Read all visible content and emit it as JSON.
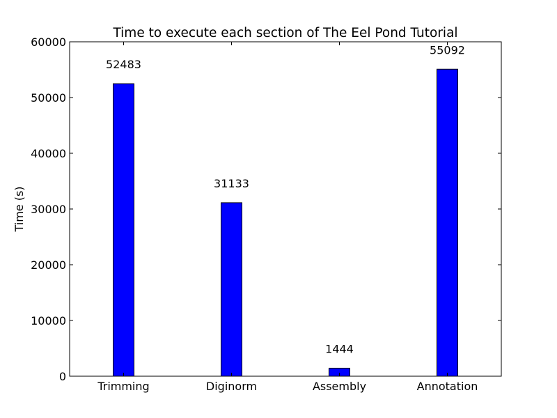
{
  "chart_data": {
    "type": "bar",
    "title": "Time to execute each section of The Eel Pond Tutorial",
    "xlabel": "",
    "ylabel": "Time (s)",
    "categories": [
      "Trimming",
      "Diginorm",
      "Assembly",
      "Annotation"
    ],
    "values": [
      52483,
      31133,
      1444,
      55092
    ],
    "data_labels": [
      "52483",
      "31133",
      "1444",
      "55092"
    ],
    "ylim": [
      0,
      60000
    ],
    "yticks": [
      0,
      10000,
      20000,
      30000,
      40000,
      50000,
      60000
    ],
    "ytick_labels": [
      "0",
      "10000",
      "20000",
      "30000",
      "40000",
      "50000",
      "60000"
    ],
    "grid": false,
    "bar_color": "#0000ff",
    "edge_color": "#000000"
  }
}
